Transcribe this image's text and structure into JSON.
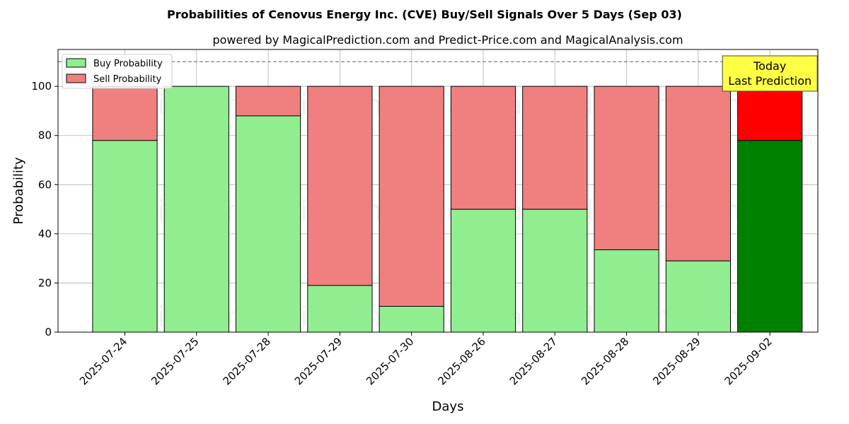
{
  "chart_data": {
    "type": "bar",
    "stacked": true,
    "title": "Probabilities of Cenovus Energy Inc. (CVE) Buy/Sell Signals Over 5 Days (Sep 03)",
    "subtitle": "powered by MagicalPrediction.com and Predict-Price.com and MagicalAnalysis.com",
    "xlabel": "Days",
    "ylabel": "Probability",
    "ylim": [
      0,
      115
    ],
    "yticks": [
      0,
      20,
      40,
      60,
      80,
      100
    ],
    "grid": true,
    "legend_position": "top-left",
    "categories": [
      "2025-07-24",
      "2025-07-25",
      "2025-07-28",
      "2025-07-29",
      "2025-07-30",
      "2025-08-26",
      "2025-08-27",
      "2025-08-28",
      "2025-08-29",
      "2025-09-02"
    ],
    "series": [
      {
        "name": "Buy Probability",
        "color": "#90ee90",
        "highlight_color": "#008000",
        "values": [
          78,
          100,
          88,
          19,
          10.5,
          50,
          50,
          33.5,
          29,
          78
        ]
      },
      {
        "name": "Sell Probability",
        "color": "#f08080",
        "highlight_color": "#ff0000",
        "values": [
          22,
          0,
          12,
          81,
          89.5,
          50,
          50,
          66.5,
          71,
          22
        ]
      }
    ],
    "highlight_index": 9,
    "reference_line": {
      "y": 110,
      "style": "dashed",
      "color": "#808080"
    },
    "annotation": {
      "lines": [
        "Today",
        "Last Prediction"
      ],
      "background": "#ffff44",
      "anchor_category": "2025-09-02"
    },
    "watermarks": [
      "MagicalAnalysis.com",
      "MagicalPrediction.com"
    ]
  }
}
